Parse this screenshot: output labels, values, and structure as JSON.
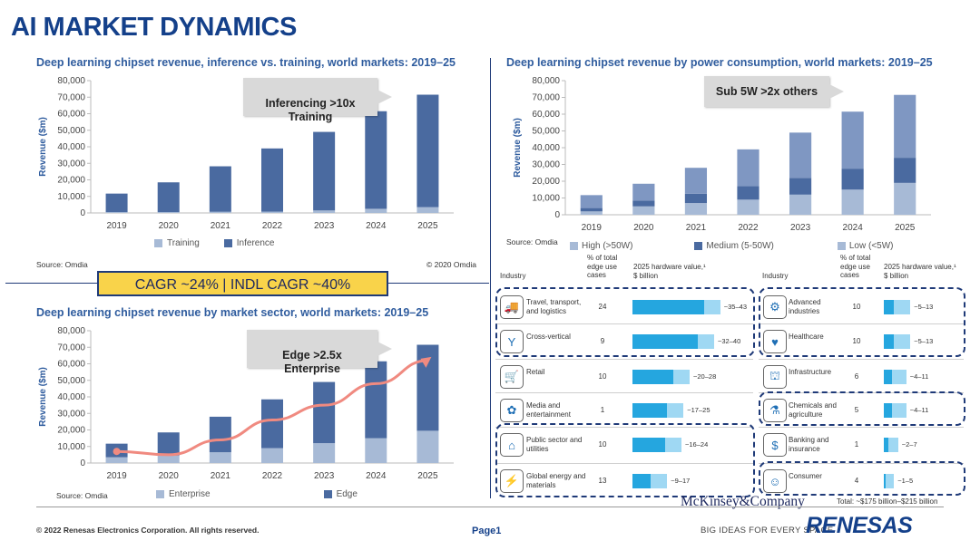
{
  "page_title": "AI MARKET DYNAMICS",
  "charts": {
    "c1": {
      "title": "Deep learning chipset revenue, inference vs. training, world markets: 2019–25",
      "source": "Source: Omdia",
      "copyright": "© 2020 Omdia",
      "callout": "Inferencing >10x\nTraining"
    },
    "c2": {
      "title": "Deep learning chipset revenue by power consumption, world markets: 2019–25",
      "source": "Source: Omdia",
      "callout": "Sub 5W >2x others"
    },
    "c3": {
      "title": "Deep learning chipset revenue by market sector, world markets: 2019–25",
      "source": "Source: Omdia",
      "callout": "Edge >2.5x\nEnterprise"
    }
  },
  "cagr": "CAGR ~24% | INDL CAGR ~40%",
  "colors": {
    "title_blue": "#14408a",
    "bar_dark": "#4a6aa0",
    "bar_light": "#a7bad6",
    "bar_mid": "#7f97c2",
    "trend": "#f08a80",
    "hw_dark": "#25a6df",
    "hw_light": "#9fd8f3"
  },
  "chart_data": [
    {
      "type": "bar",
      "stacked": true,
      "categories": [
        "2019",
        "2020",
        "2021",
        "2022",
        "2023",
        "2024",
        "2025"
      ],
      "ylabel": "Revenue ($m)",
      "ylim": [
        0,
        80000
      ],
      "yticks": [
        "0",
        "10,000",
        "20,000",
        "30,000",
        "40,000",
        "50,000",
        "60,000",
        "70,000",
        "80,000"
      ],
      "series": [
        {
          "name": "Training",
          "values": [
            500,
            500,
            700,
            800,
            1500,
            2500,
            3500
          ]
        },
        {
          "name": "Inference",
          "values": [
            11200,
            18000,
            27500,
            38200,
            47500,
            59000,
            68000
          ]
        }
      ]
    },
    {
      "type": "bar",
      "stacked": true,
      "categories": [
        "2019",
        "2020",
        "2021",
        "2022",
        "2023",
        "2024",
        "2025"
      ],
      "ylabel": "Revenue ($m)",
      "ylim": [
        0,
        80000
      ],
      "yticks": [
        "0",
        "10,000",
        "20,000",
        "30,000",
        "40,000",
        "50,000",
        "60,000",
        "70,000",
        "80,000"
      ],
      "series": [
        {
          "name": "High (>50W)",
          "values": [
            2000,
            5000,
            7000,
            9000,
            12000,
            15000,
            19000
          ]
        },
        {
          "name": "Medium (5-50W)",
          "values": [
            2000,
            3500,
            5500,
            8000,
            10000,
            12500,
            15000
          ]
        },
        {
          "name": "Low (<5W)",
          "values": [
            7700,
            10000,
            15500,
            22000,
            27000,
            34000,
            37500
          ]
        }
      ]
    },
    {
      "type": "bar",
      "stacked": true,
      "categories": [
        "2019",
        "2020",
        "2021",
        "2022",
        "2023",
        "2024",
        "2025"
      ],
      "ylabel": "Revenue ($m)",
      "ylim": [
        0,
        80000
      ],
      "yticks": [
        "0",
        "10,000",
        "20,000",
        "30,000",
        "40,000",
        "50,000",
        "60,000",
        "70,000",
        "80,000"
      ],
      "series": [
        {
          "name": "Enterprise",
          "values": [
            3500,
            4500,
            6500,
            9000,
            12000,
            15000,
            19500
          ]
        },
        {
          "name": "Edge",
          "values": [
            8200,
            14000,
            21500,
            29500,
            37000,
            46500,
            52000
          ]
        }
      ],
      "trend": [
        7000,
        5000,
        14000,
        26000,
        35000,
        48000,
        62000
      ]
    },
    {
      "type": "table",
      "headers": {
        "industry": "Industry",
        "pct": "% of total edge use cases",
        "hw": "2025 hardware value,¹",
        "hw_unit": "$ billion"
      },
      "left_rows": [
        {
          "icon": "truck-icon",
          "glyph": "🚚",
          "industry": "Travel, transport, and logistics",
          "pct": "24",
          "low": 35,
          "high": 43,
          "label": "~35–43",
          "highlight": true
        },
        {
          "icon": "branch-icon",
          "glyph": "Y",
          "industry": "Cross-vertical",
          "pct": "9",
          "low": 32,
          "high": 40,
          "label": "~32–40",
          "highlight": true
        },
        {
          "icon": "cart-icon",
          "glyph": "🛒",
          "industry": "Retail",
          "pct": "10",
          "low": 20,
          "high": 28,
          "label": "~20–28",
          "highlight": false
        },
        {
          "icon": "media-icon",
          "glyph": "✿",
          "industry": "Media and entertainment",
          "pct": "1",
          "low": 17,
          "high": 25,
          "label": "~17–25",
          "highlight": false
        },
        {
          "icon": "public-icon",
          "glyph": "⌂",
          "industry": "Public sector and utilities",
          "pct": "10",
          "low": 16,
          "high": 24,
          "label": "~16–24",
          "highlight": true
        },
        {
          "icon": "energy-icon",
          "glyph": "⚡",
          "industry": "Global energy and materials",
          "pct": "13",
          "low": 9,
          "high": 17,
          "label": "~9–17",
          "highlight": true
        }
      ],
      "right_rows": [
        {
          "icon": "factory-icon",
          "glyph": "⚙",
          "industry": "Advanced industries",
          "pct": "10",
          "low": 5,
          "high": 13,
          "label": "~5–13",
          "highlight": true
        },
        {
          "icon": "health-icon",
          "glyph": "♥",
          "industry": "Healthcare",
          "pct": "10",
          "low": 5,
          "high": 13,
          "label": "~5–13",
          "highlight": true
        },
        {
          "icon": "infra-icon",
          "glyph": "⛫",
          "industry": "Infrastructure",
          "pct": "6",
          "low": 4,
          "high": 11,
          "label": "~4–11",
          "highlight": false
        },
        {
          "icon": "chem-icon",
          "glyph": "⚗",
          "industry": "Chemicals and agriculture",
          "pct": "5",
          "low": 4,
          "high": 11,
          "label": "~4–11",
          "highlight": true
        },
        {
          "icon": "bank-icon",
          "glyph": "$",
          "industry": "Banking and insurance",
          "pct": "1",
          "low": 2,
          "high": 7,
          "label": "~2–7",
          "highlight": false
        },
        {
          "icon": "consumer-icon",
          "glyph": "☺",
          "industry": "Consumer",
          "pct": "4",
          "low": 1,
          "high": 5,
          "label": "~1–5",
          "highlight": true
        }
      ],
      "total": "Total: ~$175 billion–$215 billion"
    }
  ],
  "mckinsey": "McKinsey&Company",
  "footer": {
    "copyright": "© 2022 Renesas Electronics Corporation. All rights reserved.",
    "page": "Page1",
    "tagline": "BIG IDEAS FOR EVERY SPACE",
    "logo": "RENESAS"
  }
}
